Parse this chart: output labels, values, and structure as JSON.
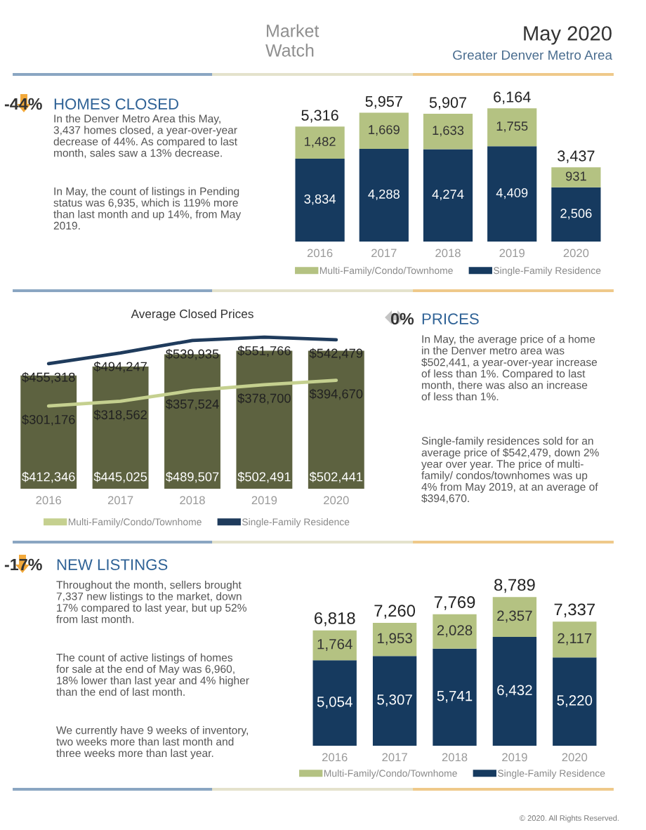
{
  "chart_data": [
    {
      "type": "other",
      "title": "May 2020",
      "subtitle": "Greater Denver Metro Area",
      "annotations": [
        "Market\nWatch"
      ]
    },
    {
      "type": "other",
      "title": "HOMES CLOSED",
      "annotations": [
        "-44%",
        "In the Denver Metro Area this May,\n3,437 homes closed, a year-over-year\ndecrease of 44%. As compared to last\nmonth, sales saw a 13% decrease.",
        "In May, the count of listings in Pending\nstatus was 6,935, which is 119% more\nthan last month and up 14%, from May\n2019."
      ]
    },
    {
      "type": "bar",
      "stacked": true,
      "categories": [
        "2016",
        "2017",
        "2018",
        "2019",
        "2020"
      ],
      "series": [
        {
          "name": "Single-Family Residence",
          "color": "#163a5f",
          "values": [
            3834,
            4288,
            4274,
            4409,
            2506
          ],
          "value_labels": [
            "3,834",
            "4,288",
            "4,274",
            "4,409",
            "2,506"
          ]
        },
        {
          "name": "Multi-Family/Condo/Townhome",
          "color": "#b4c282",
          "values": [
            1482,
            1669,
            1633,
            1755,
            931
          ],
          "value_labels": [
            "1,482",
            "1,669",
            "1,633",
            "1,755",
            "931"
          ]
        }
      ],
      "totals": [
        "5,316",
        "5,957",
        "5,907",
        "6,164",
        "3,437"
      ],
      "legend": "bottom",
      "tick_labels": "x"
    },
    {
      "type": "bar",
      "title": "Average Closed Prices",
      "categories": [
        "2016",
        "2017",
        "2018",
        "2019",
        "2020"
      ],
      "series": [
        {
          "color": "#5d6240",
          "values": [
            412346,
            445025,
            489507,
            502491,
            502441
          ],
          "value_labels": [
            "$412,346",
            "$445,025",
            "$489,507",
            "$502,491",
            "$502,441"
          ]
        },
        {
          "type": "line",
          "name": "Multi-Family/Condo/Townhome",
          "color": "#c5d08f",
          "values": [
            301176,
            318562,
            357524,
            378700,
            394670
          ],
          "value_labels": [
            "$301,176",
            "$318,562",
            "$357,524",
            "$378,700",
            "$394,670"
          ]
        },
        {
          "type": "line",
          "name": "Single-Family Residence",
          "color": "#1f3b5c",
          "values": [
            455318,
            494247,
            539935,
            551766,
            542479
          ],
          "value_labels": [
            "$455,318",
            "$494,247",
            "$539,935",
            "$551,766",
            "$542,479"
          ]
        }
      ],
      "legend": "bottom",
      "tick_labels": "x"
    },
    {
      "type": "other",
      "title": "PRICES",
      "annotations": [
        "0%",
        "In May, the average price of a home\nin the Denver metro area was\n$502,441, a year-over-year increase\nof less than 1%. Compared to last\nmonth, there was also an increase\nof less than 1%.",
        "Single-family residences sold for an\naverage price of $542,479, down 2%\nyear over year. The price of multi-\nfamily/ condos/townhomes was up\n4% from May 2019, at an average of\n$394,670."
      ]
    },
    {
      "type": "other",
      "title": "NEW LISTINGS",
      "annotations": [
        "-17%",
        "Throughout the month, sellers brought\n7,337 new listings to the market, down\n17% compared to last year, but up 52%\nfrom last month.",
        "The count of active listings of homes\nfor sale at the end of May was 6,960,\n18% lower than last year and 4% higher\nthan the end of last month.",
        "We currently have 9 weeks of inventory,\ntwo weeks more than last month and\nthree weeks more than last year."
      ]
    },
    {
      "type": "bar",
      "stacked": true,
      "categories": [
        "2016",
        "2017",
        "2018",
        "2019",
        "2020"
      ],
      "series": [
        {
          "name": "Single-Family Residence",
          "color": "#163a5f",
          "values": [
            5054,
            5307,
            5741,
            6432,
            5220
          ],
          "value_labels": [
            "5,054",
            "5,307",
            "5,741",
            "6,432",
            "5,220"
          ]
        },
        {
          "name": "Multi-Family/Condo/Townhome",
          "color": "#b4c282",
          "values": [
            1764,
            1953,
            2028,
            2357,
            2117
          ],
          "value_labels": [
            "1,764",
            "1,953",
            "2,028",
            "2,357",
            "2,117"
          ]
        }
      ],
      "totals": [
        "6,818",
        "7,260",
        "7,769",
        "8,789",
        "7,337"
      ],
      "legend": "bottom",
      "tick_labels": "x",
      "annotations": [
        "© 2020. All Rights Reserved."
      ]
    }
  ]
}
